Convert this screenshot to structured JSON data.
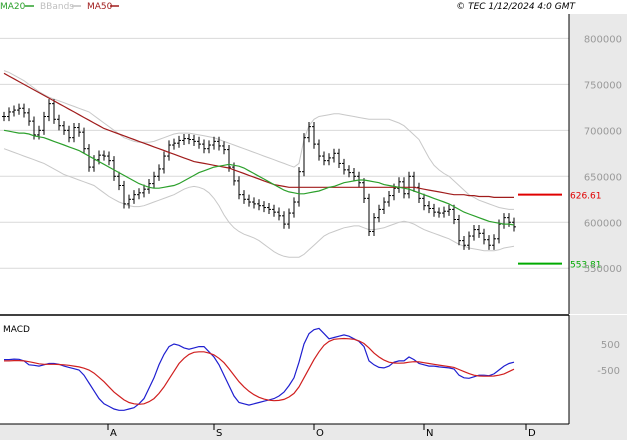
{
  "header": {
    "legend": [
      {
        "label": "MA20",
        "color": "#2ca02c"
      },
      {
        "label": "BBands",
        "color": "#bfbfbf"
      },
      {
        "label": "MA50",
        "color": "#a01c1c"
      }
    ],
    "timestamp": "© TEC 1/12/2024 4:0 GMT"
  },
  "colors": {
    "bars": "#000000",
    "ma20": "#2ca02c",
    "ma50": "#a01c1c",
    "bbands": "#c8c8c8",
    "macd": "#1f1fd0",
    "signal": "#d01f1f",
    "resistance": "#e00000",
    "support": "#00aa00",
    "axis_bg": "#e9e9e9",
    "grid": "#d9d9d9"
  },
  "chart_data": [
    {
      "type": "ohlc",
      "title": "",
      "y_ticks": [
        "800000",
        "750000",
        "700000",
        "650000",
        "600000",
        "550000"
      ],
      "ylim": [
        510000,
        820000
      ],
      "months": [
        "A",
        "S",
        "O",
        "N",
        "D"
      ],
      "levels": [
        {
          "name": "resistance",
          "label": "626.61",
          "value": 630000
        },
        {
          "name": "support",
          "label": "553.81",
          "value": 555000
        }
      ],
      "series": [
        {
          "name": "price",
          "values": [
            715000,
            720000,
            722000,
            724000,
            719000,
            710000,
            695000,
            700000,
            715000,
            729000,
            712000,
            705000,
            700000,
            692000,
            703000,
            698000,
            680000,
            660000,
            668000,
            673000,
            672000,
            667000,
            650000,
            640000,
            620000,
            625000,
            630000,
            632000,
            636000,
            642000,
            650000,
            658000,
            672000,
            684000,
            686000,
            689000,
            691000,
            690000,
            688000,
            685000,
            680000,
            684000,
            688000,
            683000,
            679000,
            660000,
            645000,
            630000,
            625000,
            622000,
            620000,
            618000,
            616000,
            614000,
            611000,
            607000,
            598000,
            610000,
            622000,
            655000,
            692000,
            704000,
            685000,
            672000,
            667000,
            670000,
            675000,
            664000,
            657000,
            654000,
            650000,
            643000,
            626000,
            590000,
            605000,
            614000,
            622000,
            629000,
            637000,
            644000,
            631000,
            650000,
            638000,
            626000,
            618000,
            615000,
            611000,
            610000,
            612000,
            614000,
            603000,
            580000,
            575000,
            585000,
            592000,
            588000,
            581000,
            575000,
            582000,
            598000,
            605000,
            600000,
            595000
          ]
        },
        {
          "name": "MA20",
          "values": [
            700000,
            699000,
            698000,
            697000,
            697000,
            696000,
            694000,
            693000,
            692000,
            690000,
            688000,
            686000,
            684000,
            682000,
            680000,
            678000,
            675000,
            672000,
            669000,
            666000,
            663000,
            660000,
            657000,
            654000,
            651000,
            648000,
            645000,
            642000,
            640000,
            638000,
            637000,
            637000,
            638000,
            639000,
            640000,
            642000,
            645000,
            648000,
            651000,
            654000,
            656000,
            658000,
            660000,
            661000,
            662000,
            663000,
            662000,
            661000,
            659000,
            656000,
            653000,
            650000,
            647000,
            644000,
            641000,
            638000,
            635000,
            633000,
            632000,
            631000,
            631000,
            632000,
            633000,
            634000,
            636000,
            638000,
            639000,
            641000,
            643000,
            644000,
            645000,
            646000,
            646000,
            645000,
            644000,
            643000,
            641000,
            640000,
            639000,
            638000,
            637000,
            636000,
            634000,
            632000,
            630000,
            628000,
            626000,
            624000,
            622000,
            620000,
            617000,
            614000,
            611000,
            609000,
            607000,
            605000,
            603000,
            601000,
            600000,
            599000,
            598000,
            598000,
            597000
          ]
        },
        {
          "name": "MA50",
          "values": [
            762000,
            759000,
            756000,
            753000,
            750000,
            747000,
            744000,
            741000,
            738000,
            735000,
            732000,
            729000,
            726000,
            723000,
            720000,
            717000,
            714000,
            711000,
            708000,
            705000,
            702000,
            700000,
            698000,
            696000,
            694000,
            692000,
            690000,
            688000,
            686000,
            684000,
            682000,
            680000,
            678000,
            676000,
            674000,
            672000,
            670000,
            668000,
            666000,
            665000,
            664000,
            663000,
            662000,
            661000,
            660000,
            659000,
            657000,
            655000,
            653000,
            651000,
            649000,
            647000,
            645000,
            643000,
            641000,
            640000,
            639000,
            638000,
            638000,
            638000,
            638000,
            638000,
            638000,
            638000,
            638000,
            638000,
            638000,
            638000,
            638000,
            638000,
            638000,
            638000,
            638000,
            638000,
            638000,
            638000,
            638000,
            638000,
            638000,
            638000,
            638000,
            638000,
            638000,
            637000,
            636000,
            635000,
            634000,
            633000,
            632000,
            631000,
            630000,
            630000,
            630000,
            629000,
            629000,
            628000,
            628000,
            628000,
            627000,
            627000,
            627000,
            627000,
            627000
          ]
        },
        {
          "name": "BB upper",
          "values": [
            765000,
            763000,
            760000,
            757000,
            754000,
            750000,
            746000,
            742000,
            739000,
            736000,
            734000,
            732000,
            730000,
            728000,
            726000,
            724000,
            722000,
            720000,
            716000,
            712000,
            708000,
            704000,
            700000,
            696000,
            692000,
            690000,
            688000,
            687000,
            687000,
            687000,
            688000,
            690000,
            692000,
            694000,
            696000,
            697000,
            697000,
            697000,
            696000,
            695000,
            694000,
            693000,
            692000,
            690000,
            688000,
            686000,
            684000,
            682000,
            680000,
            678000,
            676000,
            674000,
            672000,
            670000,
            668000,
            666000,
            664000,
            662000,
            660000,
            664000,
            690000,
            705000,
            712000,
            715000,
            716000,
            717000,
            718000,
            718000,
            717000,
            716000,
            715000,
            714000,
            713000,
            712000,
            712000,
            712000,
            712000,
            712000,
            710000,
            708000,
            705000,
            700000,
            695000,
            690000,
            680000,
            670000,
            662000,
            657000,
            653000,
            650000,
            645000,
            640000,
            635000,
            630000,
            627000,
            624000,
            622000,
            620000,
            618000,
            616000,
            615000,
            614000,
            614000
          ]
        },
        {
          "name": "BB lower",
          "values": [
            680000,
            678000,
            676000,
            674000,
            672000,
            670000,
            668000,
            666000,
            664000,
            661000,
            658000,
            655000,
            652000,
            650000,
            648000,
            646000,
            644000,
            642000,
            640000,
            636000,
            632000,
            628000,
            625000,
            622000,
            620000,
            618000,
            617000,
            617000,
            618000,
            620000,
            622000,
            624000,
            626000,
            628000,
            630000,
            633000,
            636000,
            638000,
            639000,
            638000,
            636000,
            632000,
            626000,
            618000,
            608000,
            600000,
            594000,
            590000,
            587000,
            585000,
            583000,
            580000,
            576000,
            572000,
            568000,
            565000,
            563000,
            562000,
            562000,
            562000,
            565000,
            570000,
            575000,
            580000,
            585000,
            588000,
            590000,
            592000,
            594000,
            595000,
            596000,
            596000,
            594000,
            592000,
            592000,
            593000,
            594000,
            596000,
            598000,
            600000,
            601000,
            600000,
            598000,
            595000,
            592000,
            590000,
            588000,
            586000,
            584000,
            582000,
            579000,
            576000,
            574000,
            572000,
            571000,
            570000,
            569000,
            569000,
            569000,
            570000,
            572000,
            573000,
            574000
          ]
        }
      ]
    },
    {
      "type": "line",
      "title": "MACD",
      "y_ticks": [
        "500",
        "-500"
      ],
      "ylim": [
        -2500,
        1500
      ],
      "series": [
        {
          "name": "MACD",
          "values": [
            -100,
            -100,
            -80,
            -90,
            -150,
            -300,
            -320,
            -350,
            -300,
            -250,
            -250,
            -280,
            -350,
            -400,
            -450,
            -500,
            -700,
            -1000,
            -1300,
            -1600,
            -1800,
            -1900,
            -2000,
            -2050,
            -2050,
            -2000,
            -1950,
            -1800,
            -1600,
            -1200,
            -800,
            -300,
            100,
            400,
            500,
            450,
            350,
            300,
            350,
            400,
            400,
            200,
            0,
            -300,
            -700,
            -1100,
            -1500,
            -1750,
            -1800,
            -1850,
            -1800,
            -1750,
            -1700,
            -1650,
            -1600,
            -1500,
            -1350,
            -1100,
            -800,
            -200,
            500,
            900,
            1050,
            1100,
            900,
            700,
            750,
            800,
            850,
            800,
            700,
            600,
            400,
            -150,
            -300,
            -400,
            -420,
            -350,
            -200,
            -150,
            -150,
            0,
            -100,
            -250,
            -300,
            -350,
            -350,
            -380,
            -400,
            -420,
            -460,
            -700,
            -800,
            -820,
            -760,
            -700,
            -700,
            -720,
            -650,
            -500,
            -350,
            -250,
            -200
          ]
        },
        {
          "name": "Signal",
          "values": [
            -150,
            -150,
            -140,
            -140,
            -150,
            -180,
            -220,
            -260,
            -280,
            -280,
            -280,
            -290,
            -300,
            -320,
            -350,
            -380,
            -430,
            -500,
            -620,
            -780,
            -950,
            -1150,
            -1350,
            -1500,
            -1650,
            -1750,
            -1800,
            -1820,
            -1800,
            -1720,
            -1600,
            -1400,
            -1150,
            -850,
            -550,
            -250,
            -50,
            100,
            180,
            200,
            200,
            150,
            80,
            -50,
            -220,
            -450,
            -700,
            -950,
            -1150,
            -1320,
            -1450,
            -1550,
            -1620,
            -1660,
            -1680,
            -1670,
            -1630,
            -1540,
            -1400,
            -1150,
            -800,
            -450,
            -100,
            200,
            450,
            600,
            680,
            700,
            710,
            700,
            680,
            620,
            520,
            350,
            150,
            0,
            -120,
            -200,
            -230,
            -240,
            -230,
            -200,
            -180,
            -190,
            -220,
            -250,
            -280,
            -310,
            -340,
            -370,
            -400,
            -480,
            -560,
            -640,
            -700,
            -730,
            -740,
            -740,
            -730,
            -700,
            -650,
            -560,
            -470
          ]
        }
      ]
    }
  ]
}
